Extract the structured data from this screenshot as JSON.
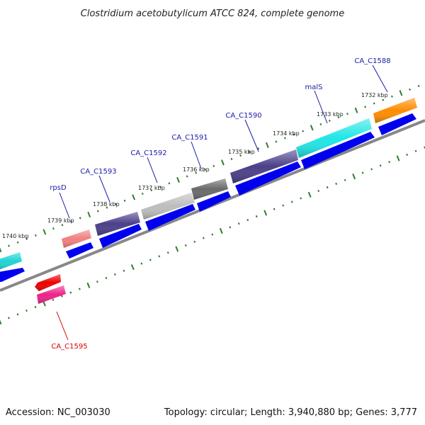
{
  "title": "Clostridium acetobutylicum ATCC 824, complete genome",
  "footer": {
    "accession": "Accession: NC_003030",
    "summary": "Topology: circular; Length: 3,940,880 bp; Genes: 3,777"
  },
  "colors": {
    "backbone": "#888888",
    "tick": "#2e7d2e",
    "cds": "#0000ee",
    "label_forward": "#1a1aaa",
    "label_reverse": "#dd0000"
  },
  "kbp_labels": [
    {
      "text": "1740 kbp"
    },
    {
      "text": "1739 kbp"
    },
    {
      "text": "1738 kbp"
    },
    {
      "text": "1737 kbp"
    },
    {
      "text": "1736 kbp"
    },
    {
      "text": "1735 kbp"
    },
    {
      "text": "1734 kbp"
    },
    {
      "text": "1733 kbp"
    },
    {
      "text": "1732 kbp"
    }
  ],
  "gene_labels": [
    {
      "text": "rpsD",
      "strand": "forward"
    },
    {
      "text": "CA_C1593",
      "strand": "forward"
    },
    {
      "text": "CA_C1592",
      "strand": "forward"
    },
    {
      "text": "CA_C1591",
      "strand": "forward"
    },
    {
      "text": "CA_C1590",
      "strand": "forward"
    },
    {
      "text": "malS",
      "strand": "forward"
    },
    {
      "text": "CA_C1588",
      "strand": "forward"
    },
    {
      "text": "CA_C1595",
      "strand": "reverse"
    }
  ],
  "features": [
    {
      "name": "feature-cyan-left",
      "color": "#20d4d4"
    },
    {
      "name": "feature-rpsd",
      "color": "#f08080"
    },
    {
      "name": "feature-ca-c1593",
      "color": "#4a3f8a"
    },
    {
      "name": "feature-ca-c1592",
      "color": "#bdbdbd"
    },
    {
      "name": "feature-ca-c1591",
      "color": "#6a6a6a"
    },
    {
      "name": "feature-ca-c1590",
      "color": "#4a3f8a"
    },
    {
      "name": "feature-mals",
      "color": "#20e6e6"
    },
    {
      "name": "feature-ca-c1588",
      "color": "#ff8c00"
    },
    {
      "name": "feature-ca-c1595-red",
      "color": "#ee0000"
    },
    {
      "name": "feature-ca-c1595-pink",
      "color": "#ee2288"
    }
  ]
}
